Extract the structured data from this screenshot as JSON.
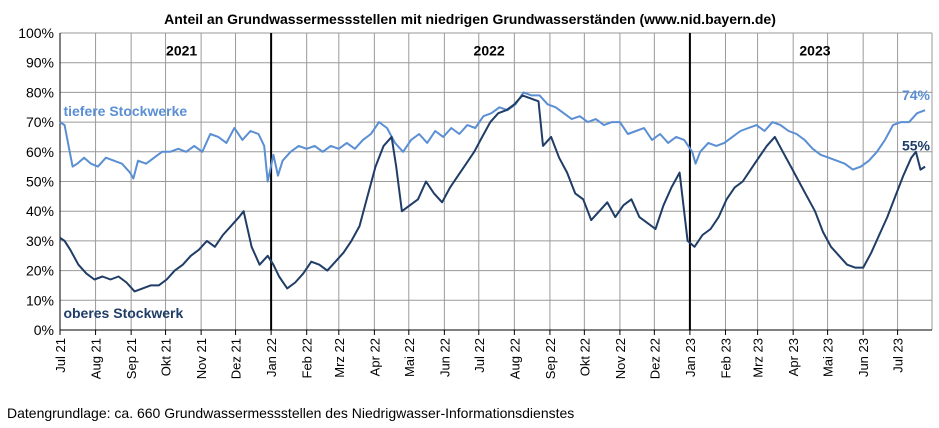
{
  "chart_data": {
    "type": "line",
    "title": "Anteil an Grundwassermessstellen mit niedrigen Grundwasserständen (www.nid.bayern.de)",
    "xlabel": "",
    "ylabel": "",
    "ylim": [
      0,
      100
    ],
    "ytick_labels": [
      "0%",
      "10%",
      "20%",
      "30%",
      "40%",
      "50%",
      "60%",
      "70%",
      "80%",
      "90%",
      "100%"
    ],
    "x_range": [
      "2021-07-01",
      "2023-07-31"
    ],
    "xtick_labels": [
      "Jul 21",
      "Aug 21",
      "Sep 21",
      "Okt 21",
      "Nov 21",
      "Dez 21",
      "Jan 22",
      "Feb 22",
      "Mrz 22",
      "Apr 22",
      "Mai 22",
      "Jun 22",
      "Jul 22",
      "Aug 22",
      "Sep 22",
      "Okt 22",
      "Nov 22",
      "Dez 22",
      "Jan 23",
      "Feb 23",
      "Mrz 23",
      "Apr 23",
      "Mai 23",
      "Jun 23",
      "Jul 23"
    ],
    "xtick_dates": [
      "2021-07-01",
      "2021-08-01",
      "2021-09-01",
      "2021-10-01",
      "2021-11-01",
      "2021-12-01",
      "2022-01-01",
      "2022-02-01",
      "2022-03-01",
      "2022-04-01",
      "2022-05-01",
      "2022-06-01",
      "2022-07-01",
      "2022-08-01",
      "2022-09-01",
      "2022-10-01",
      "2022-11-01",
      "2022-12-01",
      "2023-01-01",
      "2023-02-01",
      "2023-03-01",
      "2023-04-01",
      "2023-05-01",
      "2023-06-01",
      "2023-07-01"
    ],
    "grid": true,
    "year_separators": [
      "2022-01-01",
      "2023-01-01"
    ],
    "year_labels": [
      {
        "text": "2021",
        "date": "2021-10-15"
      },
      {
        "text": "2022",
        "date": "2022-07-10"
      },
      {
        "text": "2023",
        "date": "2023-04-20"
      }
    ],
    "series": [
      {
        "name": "tiefere Stockwerke",
        "color": "#5b8fd4",
        "end_label": "74%",
        "points": [
          [
            "2021-07-01",
            70
          ],
          [
            "2021-07-05",
            69
          ],
          [
            "2021-07-08",
            63
          ],
          [
            "2021-07-12",
            55
          ],
          [
            "2021-07-16",
            56
          ],
          [
            "2021-07-22",
            58
          ],
          [
            "2021-07-28",
            56
          ],
          [
            "2021-08-03",
            55
          ],
          [
            "2021-08-10",
            58
          ],
          [
            "2021-08-17",
            57
          ],
          [
            "2021-08-24",
            56
          ],
          [
            "2021-08-31",
            53
          ],
          [
            "2021-09-03",
            51
          ],
          [
            "2021-09-07",
            57
          ],
          [
            "2021-09-14",
            56
          ],
          [
            "2021-09-21",
            58
          ],
          [
            "2021-09-28",
            60
          ],
          [
            "2021-10-05",
            60
          ],
          [
            "2021-10-12",
            61
          ],
          [
            "2021-10-19",
            60
          ],
          [
            "2021-10-26",
            62
          ],
          [
            "2021-11-02",
            60
          ],
          [
            "2021-11-09",
            66
          ],
          [
            "2021-11-16",
            65
          ],
          [
            "2021-11-23",
            63
          ],
          [
            "2021-11-30",
            68
          ],
          [
            "2021-12-07",
            64
          ],
          [
            "2021-12-14",
            67
          ],
          [
            "2021-12-21",
            66
          ],
          [
            "2021-12-26",
            62
          ],
          [
            "2021-12-29",
            50
          ],
          [
            "2022-01-03",
            59
          ],
          [
            "2022-01-07",
            52
          ],
          [
            "2022-01-11",
            57
          ],
          [
            "2022-01-18",
            60
          ],
          [
            "2022-01-25",
            62
          ],
          [
            "2022-02-01",
            61
          ],
          [
            "2022-02-08",
            62
          ],
          [
            "2022-02-15",
            60
          ],
          [
            "2022-02-22",
            62
          ],
          [
            "2022-03-01",
            61
          ],
          [
            "2022-03-08",
            63
          ],
          [
            "2022-03-15",
            61
          ],
          [
            "2022-03-22",
            64
          ],
          [
            "2022-03-29",
            66
          ],
          [
            "2022-04-05",
            70
          ],
          [
            "2022-04-12",
            68
          ],
          [
            "2022-04-19",
            63
          ],
          [
            "2022-04-26",
            60
          ],
          [
            "2022-05-03",
            64
          ],
          [
            "2022-05-10",
            66
          ],
          [
            "2022-05-17",
            63
          ],
          [
            "2022-05-24",
            67
          ],
          [
            "2022-05-31",
            65
          ],
          [
            "2022-06-07",
            68
          ],
          [
            "2022-06-14",
            66
          ],
          [
            "2022-06-21",
            69
          ],
          [
            "2022-06-28",
            68
          ],
          [
            "2022-07-05",
            72
          ],
          [
            "2022-07-12",
            73
          ],
          [
            "2022-07-19",
            75
          ],
          [
            "2022-07-26",
            74
          ],
          [
            "2022-08-02",
            76
          ],
          [
            "2022-08-09",
            80
          ],
          [
            "2022-08-16",
            79
          ],
          [
            "2022-08-23",
            79
          ],
          [
            "2022-08-30",
            76
          ],
          [
            "2022-09-06",
            75
          ],
          [
            "2022-09-13",
            73
          ],
          [
            "2022-09-20",
            71
          ],
          [
            "2022-09-27",
            72
          ],
          [
            "2022-10-04",
            70
          ],
          [
            "2022-10-11",
            71
          ],
          [
            "2022-10-18",
            69
          ],
          [
            "2022-10-25",
            70
          ],
          [
            "2022-11-01",
            70
          ],
          [
            "2022-11-08",
            66
          ],
          [
            "2022-11-15",
            67
          ],
          [
            "2022-11-22",
            68
          ],
          [
            "2022-11-29",
            64
          ],
          [
            "2022-12-06",
            66
          ],
          [
            "2022-12-13",
            63
          ],
          [
            "2022-12-20",
            65
          ],
          [
            "2022-12-27",
            64
          ],
          [
            "2023-01-03",
            60
          ],
          [
            "2023-01-06",
            56
          ],
          [
            "2023-01-10",
            60
          ],
          [
            "2023-01-17",
            63
          ],
          [
            "2023-01-24",
            62
          ],
          [
            "2023-01-31",
            63
          ],
          [
            "2023-02-07",
            65
          ],
          [
            "2023-02-14",
            67
          ],
          [
            "2023-02-21",
            68
          ],
          [
            "2023-02-28",
            69
          ],
          [
            "2023-03-07",
            67
          ],
          [
            "2023-03-14",
            70
          ],
          [
            "2023-03-21",
            69
          ],
          [
            "2023-03-28",
            67
          ],
          [
            "2023-04-04",
            66
          ],
          [
            "2023-04-11",
            64
          ],
          [
            "2023-04-18",
            61
          ],
          [
            "2023-04-25",
            59
          ],
          [
            "2023-05-02",
            58
          ],
          [
            "2023-05-09",
            57
          ],
          [
            "2023-05-16",
            56
          ],
          [
            "2023-05-23",
            54
          ],
          [
            "2023-05-30",
            55
          ],
          [
            "2023-06-06",
            57
          ],
          [
            "2023-06-13",
            60
          ],
          [
            "2023-06-20",
            64
          ],
          [
            "2023-06-27",
            69
          ],
          [
            "2023-07-04",
            70
          ],
          [
            "2023-07-11",
            70
          ],
          [
            "2023-07-18",
            73
          ],
          [
            "2023-07-25",
            74
          ]
        ]
      },
      {
        "name": "oberes Stockwerk",
        "color": "#1f3d66",
        "end_label": "55%",
        "points": [
          [
            "2021-07-01",
            31
          ],
          [
            "2021-07-05",
            30
          ],
          [
            "2021-07-10",
            27
          ],
          [
            "2021-07-17",
            22
          ],
          [
            "2021-07-24",
            19
          ],
          [
            "2021-07-31",
            17
          ],
          [
            "2021-08-07",
            18
          ],
          [
            "2021-08-14",
            17
          ],
          [
            "2021-08-21",
            18
          ],
          [
            "2021-08-28",
            16
          ],
          [
            "2021-09-04",
            13
          ],
          [
            "2021-09-11",
            14
          ],
          [
            "2021-09-18",
            15
          ],
          [
            "2021-09-25",
            15
          ],
          [
            "2021-10-02",
            17
          ],
          [
            "2021-10-09",
            20
          ],
          [
            "2021-10-16",
            22
          ],
          [
            "2021-10-23",
            25
          ],
          [
            "2021-10-30",
            27
          ],
          [
            "2021-11-06",
            30
          ],
          [
            "2021-11-13",
            28
          ],
          [
            "2021-11-20",
            32
          ],
          [
            "2021-11-27",
            35
          ],
          [
            "2021-12-04",
            38
          ],
          [
            "2021-12-08",
            40
          ],
          [
            "2021-12-15",
            28
          ],
          [
            "2021-12-22",
            22
          ],
          [
            "2021-12-29",
            25
          ],
          [
            "2022-01-03",
            22
          ],
          [
            "2022-01-08",
            18
          ],
          [
            "2022-01-15",
            14
          ],
          [
            "2022-01-22",
            16
          ],
          [
            "2022-01-29",
            19
          ],
          [
            "2022-02-05",
            23
          ],
          [
            "2022-02-12",
            22
          ],
          [
            "2022-02-19",
            20
          ],
          [
            "2022-02-26",
            23
          ],
          [
            "2022-03-05",
            26
          ],
          [
            "2022-03-12",
            30
          ],
          [
            "2022-03-19",
            35
          ],
          [
            "2022-03-26",
            45
          ],
          [
            "2022-04-02",
            55
          ],
          [
            "2022-04-09",
            62
          ],
          [
            "2022-04-16",
            65
          ],
          [
            "2022-04-20",
            55
          ],
          [
            "2022-04-25",
            40
          ],
          [
            "2022-05-02",
            42
          ],
          [
            "2022-05-09",
            44
          ],
          [
            "2022-05-16",
            50
          ],
          [
            "2022-05-23",
            46
          ],
          [
            "2022-05-30",
            43
          ],
          [
            "2022-06-06",
            48
          ],
          [
            "2022-06-13",
            52
          ],
          [
            "2022-06-20",
            56
          ],
          [
            "2022-06-27",
            60
          ],
          [
            "2022-07-04",
            65
          ],
          [
            "2022-07-11",
            70
          ],
          [
            "2022-07-18",
            73
          ],
          [
            "2022-07-25",
            74
          ],
          [
            "2022-08-01",
            76
          ],
          [
            "2022-08-08",
            79
          ],
          [
            "2022-08-15",
            78
          ],
          [
            "2022-08-22",
            77
          ],
          [
            "2022-08-26",
            62
          ],
          [
            "2022-09-02",
            65
          ],
          [
            "2022-09-09",
            58
          ],
          [
            "2022-09-16",
            53
          ],
          [
            "2022-09-23",
            46
          ],
          [
            "2022-09-30",
            44
          ],
          [
            "2022-10-07",
            37
          ],
          [
            "2022-10-14",
            40
          ],
          [
            "2022-10-21",
            43
          ],
          [
            "2022-10-28",
            38
          ],
          [
            "2022-11-04",
            42
          ],
          [
            "2022-11-11",
            44
          ],
          [
            "2022-11-18",
            38
          ],
          [
            "2022-11-25",
            36
          ],
          [
            "2022-12-02",
            34
          ],
          [
            "2022-12-09",
            42
          ],
          [
            "2022-12-16",
            48
          ],
          [
            "2022-12-23",
            53
          ],
          [
            "2022-12-30",
            30
          ],
          [
            "2023-01-05",
            28
          ],
          [
            "2023-01-12",
            32
          ],
          [
            "2023-01-19",
            34
          ],
          [
            "2023-01-26",
            38
          ],
          [
            "2023-02-02",
            44
          ],
          [
            "2023-02-09",
            48
          ],
          [
            "2023-02-16",
            50
          ],
          [
            "2023-02-23",
            54
          ],
          [
            "2023-03-02",
            58
          ],
          [
            "2023-03-09",
            62
          ],
          [
            "2023-03-16",
            65
          ],
          [
            "2023-03-23",
            60
          ],
          [
            "2023-03-30",
            55
          ],
          [
            "2023-04-06",
            50
          ],
          [
            "2023-04-13",
            45
          ],
          [
            "2023-04-20",
            40
          ],
          [
            "2023-04-27",
            33
          ],
          [
            "2023-05-04",
            28
          ],
          [
            "2023-05-11",
            25
          ],
          [
            "2023-05-18",
            22
          ],
          [
            "2023-05-25",
            21
          ],
          [
            "2023-06-01",
            21
          ],
          [
            "2023-06-08",
            26
          ],
          [
            "2023-06-15",
            32
          ],
          [
            "2023-06-22",
            38
          ],
          [
            "2023-06-29",
            45
          ],
          [
            "2023-07-06",
            52
          ],
          [
            "2023-07-13",
            58
          ],
          [
            "2023-07-17",
            60
          ],
          [
            "2023-07-21",
            54
          ],
          [
            "2023-07-25",
            55
          ]
        ]
      }
    ]
  },
  "footer": "Datengrundlage:  ca. 660 Grundwassermessstellen  des Niedrigwasser-Informationsdienstes"
}
